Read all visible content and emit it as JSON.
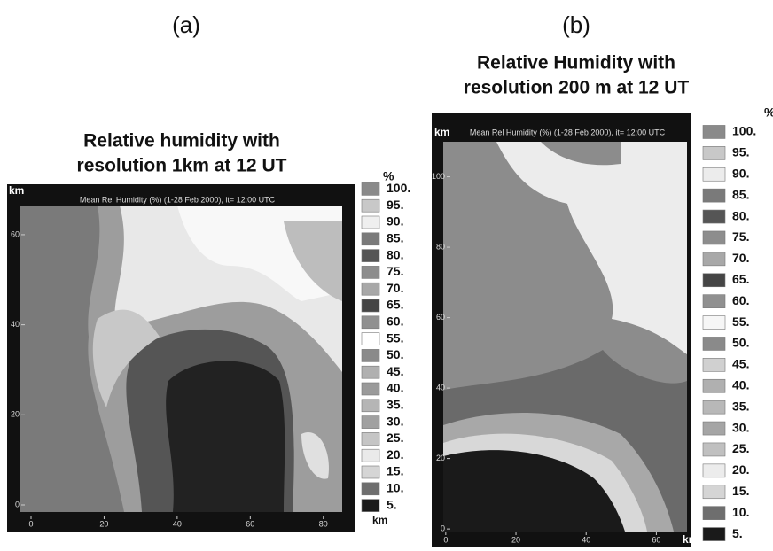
{
  "panels": [
    {
      "label": "(a)",
      "title": [
        "Relative humidity with",
        "resolution 1km at 12 UT"
      ],
      "header": "Mean Rel Humidity (%) (1-28 Feb 2000), it= 12:00 UTC",
      "y_unit": "km",
      "x_unit": "km",
      "legend_unit": "%",
      "xlim": [
        0,
        82
      ],
      "ylim": [
        0,
        71
      ],
      "xticks": [
        0,
        20,
        40,
        60,
        80
      ],
      "yticks": [
        0,
        20,
        40,
        60
      ],
      "legend": [
        {
          "label": "100.",
          "color": "#8a8a8a"
        },
        {
          "label": "95.",
          "color": "#c8c8c8"
        },
        {
          "label": "90.",
          "color": "#efefef"
        },
        {
          "label": "85.",
          "color": "#7a7a7a"
        },
        {
          "label": "80.",
          "color": "#555555"
        },
        {
          "label": "75.",
          "color": "#8d8d8d"
        },
        {
          "label": "70.",
          "color": "#a8a8a8"
        },
        {
          "label": "65.",
          "color": "#454545"
        },
        {
          "label": "60.",
          "color": "#909090"
        },
        {
          "label": "55.",
          "color": "#ffffff"
        },
        {
          "label": "50.",
          "color": "#8a8a8a"
        },
        {
          "label": "45.",
          "color": "#b0b0b0"
        },
        {
          "label": "40.",
          "color": "#9a9a9a"
        },
        {
          "label": "35.",
          "color": "#b5b5b5"
        },
        {
          "label": "30.",
          "color": "#a0a0a0"
        },
        {
          "label": "25.",
          "color": "#c5c5c5"
        },
        {
          "label": "20.",
          "color": "#eaeaea"
        },
        {
          "label": "15.",
          "color": "#d5d5d5"
        },
        {
          "label": "10.",
          "color": "#6e6e6e"
        },
        {
          "label": "5.",
          "color": "#1a1a1a"
        }
      ]
    },
    {
      "label": "(b)",
      "title": [
        "Relative Humidity with",
        "resolution 200 m at 12 UT"
      ],
      "header": "Mean Rel Humidity (%) (1-28 Feb 2000), it= 12:00 UTC",
      "y_unit": "km",
      "x_unit": "km",
      "legend_unit": "%",
      "xlim": [
        -4,
        70
      ],
      "ylim": [
        -5,
        118
      ],
      "xticks": [
        0,
        20,
        40,
        60
      ],
      "yticks": [
        0,
        20,
        40,
        60,
        80,
        100
      ],
      "legend": [
        {
          "label": "100.",
          "color": "#8a8a8a"
        },
        {
          "label": "95.",
          "color": "#c8c8c8"
        },
        {
          "label": "90.",
          "color": "#ececec"
        },
        {
          "label": "85.",
          "color": "#7a7a7a"
        },
        {
          "label": "80.",
          "color": "#555555"
        },
        {
          "label": "75.",
          "color": "#8d8d8d"
        },
        {
          "label": "70.",
          "color": "#a8a8a8"
        },
        {
          "label": "65.",
          "color": "#454545"
        },
        {
          "label": "60.",
          "color": "#909090"
        },
        {
          "label": "55.",
          "color": "#f6f6f6"
        },
        {
          "label": "50.",
          "color": "#8a8a8a"
        },
        {
          "label": "45.",
          "color": "#d0d0d0"
        },
        {
          "label": "40.",
          "color": "#b0b0b0"
        },
        {
          "label": "35.",
          "color": "#b8b8b8"
        },
        {
          "label": "30.",
          "color": "#a5a5a5"
        },
        {
          "label": "25.",
          "color": "#c0c0c0"
        },
        {
          "label": "20.",
          "color": "#ececec"
        },
        {
          "label": "15.",
          "color": "#d5d5d5"
        },
        {
          "label": "10.",
          "color": "#6e6e6e"
        },
        {
          "label": "5.",
          "color": "#1a1a1a"
        }
      ]
    }
  ]
}
